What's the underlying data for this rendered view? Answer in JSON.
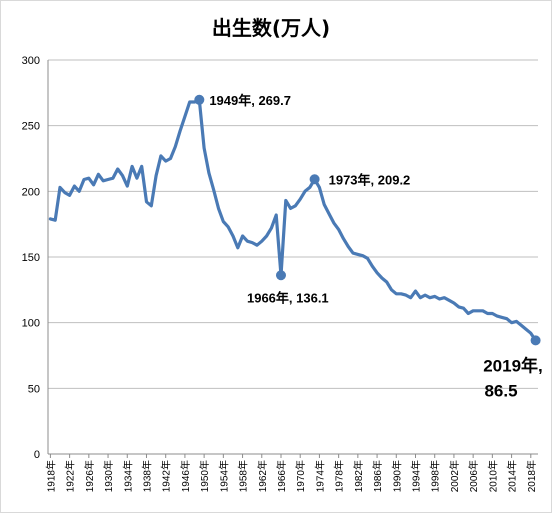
{
  "chart_data": {
    "type": "line",
    "title": "出生数(万人)",
    "xlabel": "",
    "ylabel": "",
    "ylim": [
      0,
      300
    ],
    "yticks": [
      0,
      50,
      100,
      150,
      200,
      250,
      300
    ],
    "grid": true,
    "legend": "none",
    "line_color": "#4a7ab5",
    "x_tick_labels": [
      "1918年",
      "1922年",
      "1926年",
      "1930年",
      "1934年",
      "1938年",
      "1942年",
      "1946年",
      "1950年",
      "1954年",
      "1958年",
      "1962年",
      "1966年",
      "1970年",
      "1974年",
      "1978年",
      "1982年",
      "1986年",
      "1990年",
      "1994年",
      "1998年",
      "2002年",
      "2006年",
      "2010年",
      "2014年",
      "2018年"
    ],
    "series": [
      {
        "x": [
          1918,
          1919,
          1920,
          1921,
          1922,
          1923,
          1924,
          1925,
          1926,
          1927,
          1928,
          1929,
          1930,
          1931,
          1932,
          1933,
          1934,
          1935,
          1936,
          1937,
          1938,
          1939,
          1940,
          1941,
          1942,
          1943,
          1944,
          1945,
          1946,
          1947,
          1948,
          1949,
          1950,
          1951,
          1952,
          1953,
          1954,
          1955,
          1956,
          1957,
          1958,
          1959,
          1960,
          1961,
          1962,
          1963,
          1964,
          1965,
          1966,
          1967,
          1968,
          1969,
          1970,
          1971,
          1972,
          1973,
          1974,
          1975,
          1976,
          1977,
          1978,
          1979,
          1980,
          1981,
          1982,
          1983,
          1984,
          1985,
          1986,
          1987,
          1988,
          1989,
          1990,
          1991,
          1992,
          1993,
          1994,
          1995,
          1996,
          1997,
          1998,
          1999,
          2000,
          2001,
          2002,
          2003,
          2004,
          2005,
          2006,
          2007,
          2008,
          2009,
          2010,
          2011,
          2012,
          2013,
          2014,
          2015,
          2016,
          2017,
          2018,
          2019
        ],
        "y": [
          179,
          178,
          203,
          199,
          197,
          204,
          200,
          209,
          210,
          205,
          213,
          208,
          209,
          210,
          217,
          212,
          204,
          219,
          210,
          219,
          192,
          189,
          212,
          227,
          223,
          225,
          234,
          246,
          257,
          268,
          268,
          269.7,
          233,
          214,
          201,
          187,
          177,
          173,
          166,
          157,
          166,
          162,
          161,
          159,
          162,
          166,
          172,
          182,
          136.1,
          193,
          187,
          189,
          194,
          200,
          203,
          209.2,
          203,
          190,
          183,
          176,
          171,
          164,
          158,
          153,
          152,
          151,
          149,
          143,
          138,
          134,
          131,
          125,
          122,
          122,
          121,
          119,
          124,
          119,
          121,
          119,
          120,
          118,
          119,
          117,
          115,
          112,
          111,
          107,
          109,
          109,
          109,
          107,
          107,
          105,
          104,
          103,
          100,
          101,
          98,
          95,
          92,
          86.5
        ]
      }
    ],
    "annotations": [
      {
        "x": 1949,
        "y": 269.7,
        "text": "1949年, 269.7"
      },
      {
        "x": 1966,
        "y": 136.1,
        "text": "1966年, 136.1"
      },
      {
        "x": 1973,
        "y": 209.2,
        "text": "1973年, 209.2"
      },
      {
        "x": 2019,
        "y": 86.5,
        "text_line1": "2019年,",
        "text_line2": "86.5"
      }
    ]
  }
}
